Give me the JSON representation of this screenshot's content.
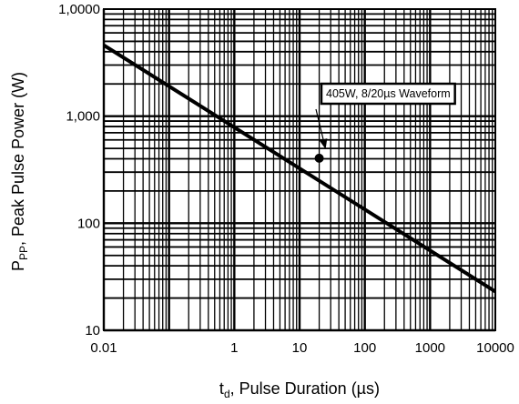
{
  "chart_data": {
    "type": "line",
    "x_scale": "log",
    "y_scale": "log",
    "xlim": [
      0.01,
      10000
    ],
    "ylim": [
      10,
      10000
    ],
    "grid": true,
    "xlabel": {
      "main": "t",
      "sub": "d",
      "rest": ", Pulse Duration (µs)"
    },
    "ylabel": {
      "main": "P",
      "sub": "PP",
      "rest": ", Peak Pulse Power (W)"
    },
    "x_ticks": [
      {
        "value": 0.01,
        "label": "0.01"
      },
      {
        "value": 1,
        "label": "1"
      },
      {
        "value": 10,
        "label": "10"
      },
      {
        "value": 100,
        "label": "100"
      },
      {
        "value": 1000,
        "label": "1000"
      },
      {
        "value": 10000,
        "label": "10000"
      }
    ],
    "y_ticks": [
      {
        "value": 10000,
        "label": "1,0000"
      },
      {
        "value": 1000,
        "label": "1,000"
      },
      {
        "value": 100,
        "label": "100"
      },
      {
        "value": 10,
        "label": "10"
      }
    ],
    "series": [
      {
        "x": [
          0.01,
          10000
        ],
        "y": [
          4600,
          23
        ]
      }
    ],
    "marker": {
      "x": 20,
      "y": 405
    },
    "annotation": {
      "text": "405W, 8/20µs Waveform",
      "x": 20,
      "y": 405
    }
  }
}
